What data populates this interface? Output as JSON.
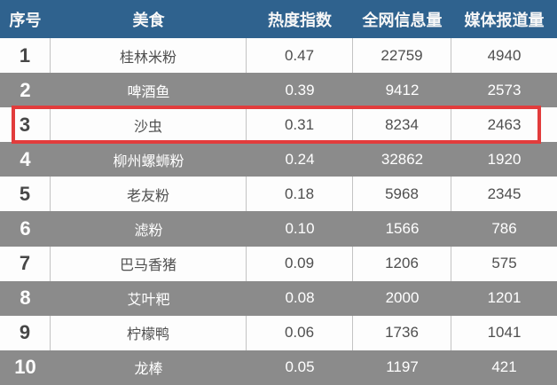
{
  "colors": {
    "header_bg": "#2f628e",
    "header_text": "#f7f7f7",
    "alt_row_bg": "#8b8b8b",
    "light_row_bg": "#fdfdfd",
    "light_row_text": "#4f4f4f",
    "cell_border": "#c3c3c3",
    "highlight_border": "#e23c3c"
  },
  "table": {
    "columns": [
      "序号",
      "美食",
      "热度指数",
      "全网信息量",
      "媒体报道量"
    ],
    "rows": [
      {
        "rank": "1",
        "food": "桂林米粉",
        "index": "0.47",
        "info": "22759",
        "media": "4940"
      },
      {
        "rank": "2",
        "food": "啤酒鱼",
        "index": "0.39",
        "info": "9412",
        "media": "2573"
      },
      {
        "rank": "3",
        "food": "沙虫",
        "index": "0.31",
        "info": "8234",
        "media": "2463"
      },
      {
        "rank": "4",
        "food": "柳州螺蛳粉",
        "index": "0.24",
        "info": "32862",
        "media": "1920"
      },
      {
        "rank": "5",
        "food": "老友粉",
        "index": "0.18",
        "info": "5968",
        "media": "2345"
      },
      {
        "rank": "6",
        "food": "滤粉",
        "index": "0.10",
        "info": "1566",
        "media": "786"
      },
      {
        "rank": "7",
        "food": "巴马香猪",
        "index": "0.09",
        "info": "1206",
        "media": "575"
      },
      {
        "rank": "8",
        "food": "艾叶粑",
        "index": "0.08",
        "info": "2000",
        "media": "1201"
      },
      {
        "rank": "9",
        "food": "柠檬鸭",
        "index": "0.06",
        "info": "1736",
        "media": "1041"
      },
      {
        "rank": "10",
        "food": "龙棒",
        "index": "0.05",
        "info": "1197",
        "media": "421"
      }
    ],
    "highlighted_rank": "3"
  },
  "chart_data": {
    "type": "table",
    "title": "",
    "columns": [
      "序号",
      "美食",
      "热度指数",
      "全网信息量",
      "媒体报道量"
    ],
    "rows": [
      [
        "1",
        "桂林米粉",
        0.47,
        22759,
        4940
      ],
      [
        "2",
        "啤酒鱼",
        0.39,
        9412,
        2573
      ],
      [
        "3",
        "沙虫",
        0.31,
        8234,
        2463
      ],
      [
        "4",
        "柳州螺蛳粉",
        0.24,
        32862,
        1920
      ],
      [
        "5",
        "老友粉",
        0.18,
        5968,
        2345
      ],
      [
        "6",
        "滤粉",
        0.1,
        1566,
        786
      ],
      [
        "7",
        "巴马香猪",
        0.09,
        1206,
        575
      ],
      [
        "8",
        "艾叶粑",
        0.08,
        2000,
        1201
      ],
      [
        "9",
        "柠檬鸭",
        0.06,
        1736,
        1041
      ],
      [
        "10",
        "龙棒",
        0.05,
        1197,
        421
      ]
    ],
    "highlighted_row_rank": 3,
    "layout_hints": {
      "header_style": "dark-blue with white bold text",
      "row_striping": "odd rows white, even rows gray",
      "highlight": "red rectangle outline around rank 3 row"
    }
  }
}
